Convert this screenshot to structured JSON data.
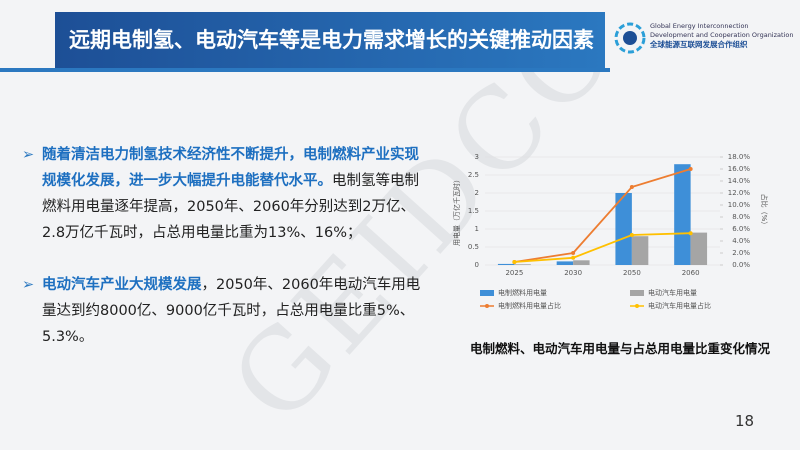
{
  "header": {
    "title": "远期电制氢、电动汽车等是电力需求增长的关键推动因素",
    "org_en_1": "Global Energy Interconnection",
    "org_en_2": "Development and Cooperation Organization",
    "org_cn": "全球能源互联网发展合作组织"
  },
  "watermark": "GEIDCO",
  "bullets": [
    {
      "highlight": "随着清洁电力制氢技术经济性不断提升，电制燃料产业实现规模化发展，进一步大幅提升电能替代水平。",
      "text": "电制氢等电制燃料用电量逐年提高，2050年、2060年分别达到2万亿、2.8万亿千瓦时，占总用电量比重为13%、16%；"
    },
    {
      "highlight": "电动汽车产业大规模发展",
      "text": "，2050年、2060年电动汽车用电量达到约8000亿、9000亿千瓦时，占总用电量比重5%、5.3%。"
    }
  ],
  "chart_data": {
    "type": "bar_line",
    "categories": [
      "2025",
      "2030",
      "2050",
      "2060"
    ],
    "ylabel": "用电量（万亿千瓦时）",
    "y2label": "占比（%）",
    "ylim": [
      0,
      3
    ],
    "yticks": [
      0,
      0.5,
      1,
      1.5,
      2,
      2.5,
      3
    ],
    "y2lim": [
      0,
      18
    ],
    "y2ticks": [
      {
        "value": 0,
        "label": "0.0%"
      },
      {
        "value": 2,
        "label": "2.0%"
      },
      {
        "value": 4,
        "label": "4.0%"
      },
      {
        "value": 6,
        "label": "6.0%"
      },
      {
        "value": 8,
        "label": "8.0%"
      },
      {
        "value": 10,
        "label": "10.0%"
      },
      {
        "value": 12,
        "label": "12.0%"
      },
      {
        "value": 14,
        "label": "14.0%"
      },
      {
        "value": 16,
        "label": "16.0%"
      },
      {
        "value": 18,
        "label": "18.0%"
      }
    ],
    "series": [
      {
        "name": "电制燃料用电量",
        "type": "bar",
        "color": "#3e8fd8",
        "values": [
          0.03,
          0.1,
          2,
          2.8
        ]
      },
      {
        "name": "电动汽车用电量",
        "type": "bar",
        "color": "#a5a5a5",
        "values": [
          0.02,
          0.13,
          0.8,
          0.9
        ]
      },
      {
        "name": "电制燃料用电量占比",
        "type": "line",
        "axis": "y2",
        "color": "#ed7d31",
        "values": [
          0.5,
          2,
          13,
          16
        ]
      },
      {
        "name": "电动汽车用电量占比",
        "type": "line",
        "axis": "y2",
        "color": "#ffc000",
        "values": [
          0.5,
          1.2,
          5,
          5.3
        ]
      }
    ]
  },
  "caption": "电制燃料、电动汽车用电量与占总用电量比重变化情况",
  "page_number": "18"
}
